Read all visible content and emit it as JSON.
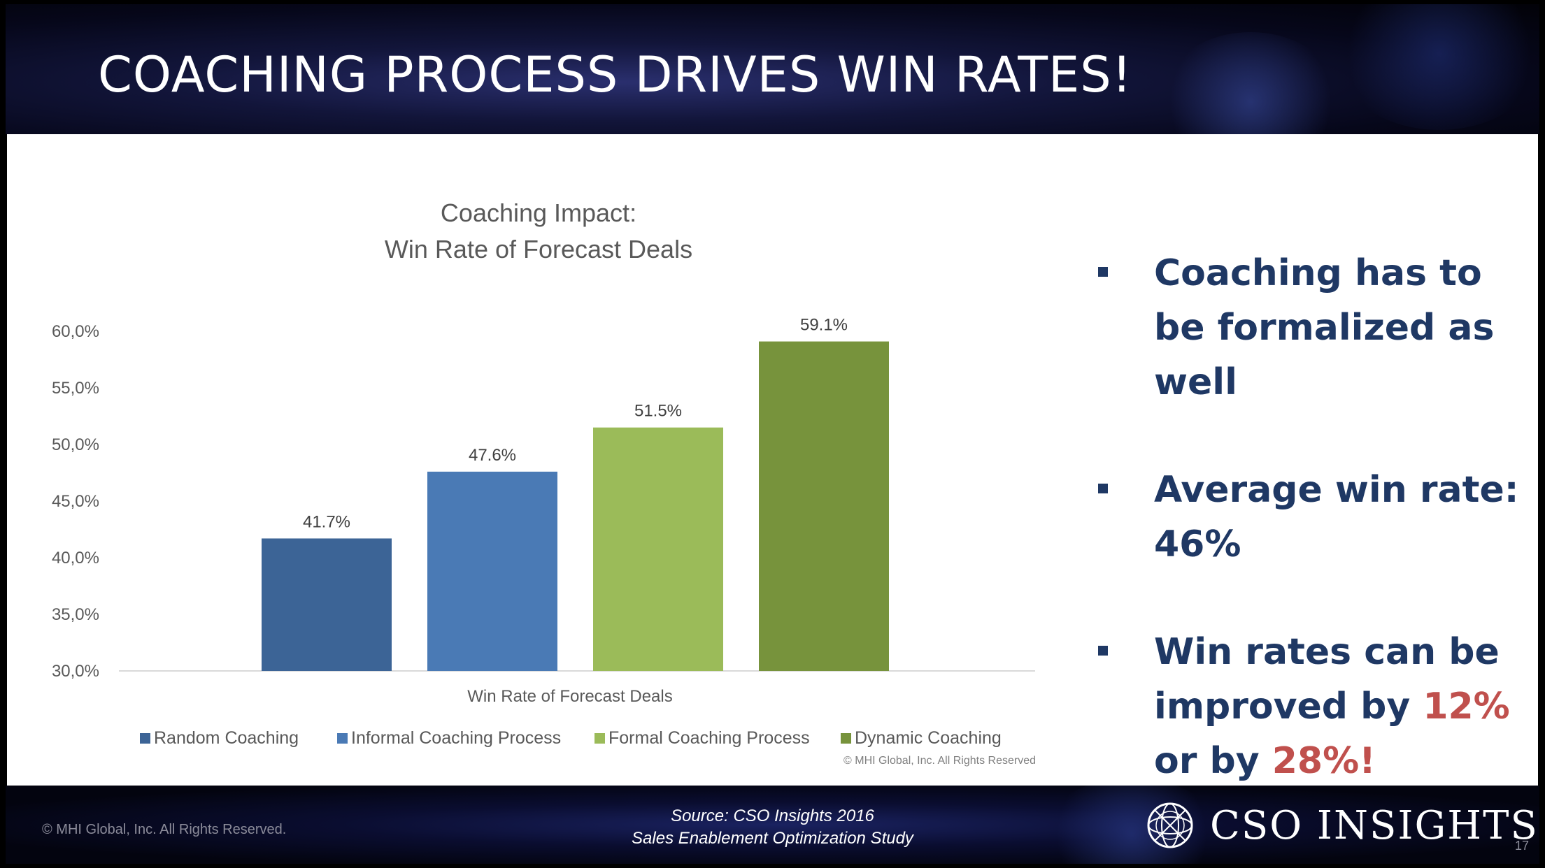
{
  "slide": {
    "title": "COACHING PROCESS DRIVES WIN RATES!",
    "page_number": "17",
    "footer_copyright": "© MHI Global, Inc. All Rights Reserved.",
    "source_line1": "Source: CSO Insights 2016",
    "source_line2": "Sales Enablement Optimization Study",
    "logo_text": "CSO INSIGHTS",
    "chart_copyright": "© MHI Global, Inc. All Rights Reserved"
  },
  "bullets": {
    "b1": "Coaching has to be formalized as well",
    "b2": "Average win rate: 46%",
    "b3_pre": "Win rates can be improved by ",
    "b3_h1": "12%",
    "b3_mid": " or by ",
    "b3_h2": "28%!",
    "highlight_color": "#c0504d",
    "text_color": "#1f3864"
  },
  "chart_data": {
    "type": "bar",
    "title_line1": "Coaching Impact:",
    "title_line2": "Win Rate of Forecast Deals",
    "xlabel": "Win Rate of Forecast Deals",
    "ylabel": "",
    "ylim": [
      30,
      60
    ],
    "yticks": [
      "30,0%",
      "35,0%",
      "40,0%",
      "45,0%",
      "50,0%",
      "55,0%",
      "60,0%"
    ],
    "ytick_values": [
      30,
      35,
      40,
      45,
      50,
      55,
      60
    ],
    "grid": false,
    "legend_position": "bottom",
    "series": [
      {
        "name": "Random Coaching",
        "value": 41.7,
        "label": "41.7%",
        "color": "#3c6496"
      },
      {
        "name": "Informal Coaching Process",
        "value": 47.6,
        "label": "47.6%",
        "color": "#4a7ab5"
      },
      {
        "name": "Formal Coaching Process",
        "value": 51.5,
        "label": "51.5%",
        "color": "#9bbb59"
      },
      {
        "name": "Dynamic Coaching",
        "value": 59.1,
        "label": "59.1%",
        "color": "#77933c"
      }
    ]
  }
}
